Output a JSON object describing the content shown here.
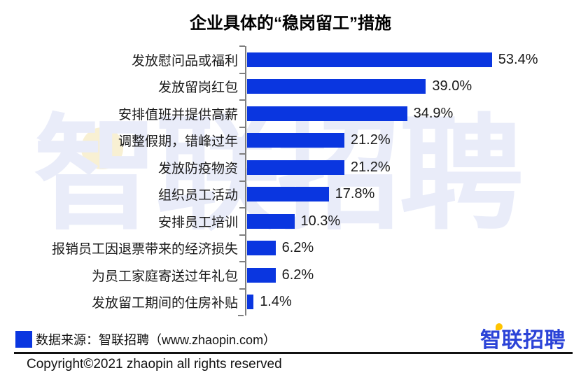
{
  "title": "企业具体的“稳岗留工”措施",
  "chart_data": {
    "type": "bar",
    "orientation": "horizontal",
    "title": "企业具体的“稳岗留工”措施",
    "categories": [
      "发放慰问品或福利",
      "发放留岗红包",
      "安排值班并提供高薪",
      "调整假期，错峰过年",
      "发放防疫物资",
      "组织员工活动",
      "安排员工培训",
      "报销员工因退票带来的经济损失",
      "为员工家庭寄送过年礼包",
      "发放留工期间的住房补贴"
    ],
    "values": [
      53.4,
      39.0,
      34.9,
      21.2,
      21.2,
      17.8,
      10.3,
      6.2,
      6.2,
      1.4
    ],
    "value_labels": [
      "53.4%",
      "39.0%",
      "34.9%",
      "21.2%",
      "21.2%",
      "17.8%",
      "10.3%",
      "6.2%",
      "6.2%",
      "1.4%"
    ],
    "xlabel": "",
    "ylabel": "",
    "xlim": [
      0,
      60
    ],
    "grid": false,
    "legend_position": "none",
    "bar_color": "#0a36e0",
    "axis_color": "#7f7f7f"
  },
  "source": {
    "legend_color": "#0a36e0",
    "text": "数据来源：智联招聘（www.zhaopin.com）"
  },
  "logo": {
    "text": "智联招聘",
    "color": "#2b43d7",
    "accent_color": "#ffc400"
  },
  "watermark": {
    "text": "智联招聘",
    "text_color": "#e9ecf9",
    "dot_color": "#f8f0d3"
  },
  "copyright": "Copyright©2021 zhaopin all rights reserved"
}
